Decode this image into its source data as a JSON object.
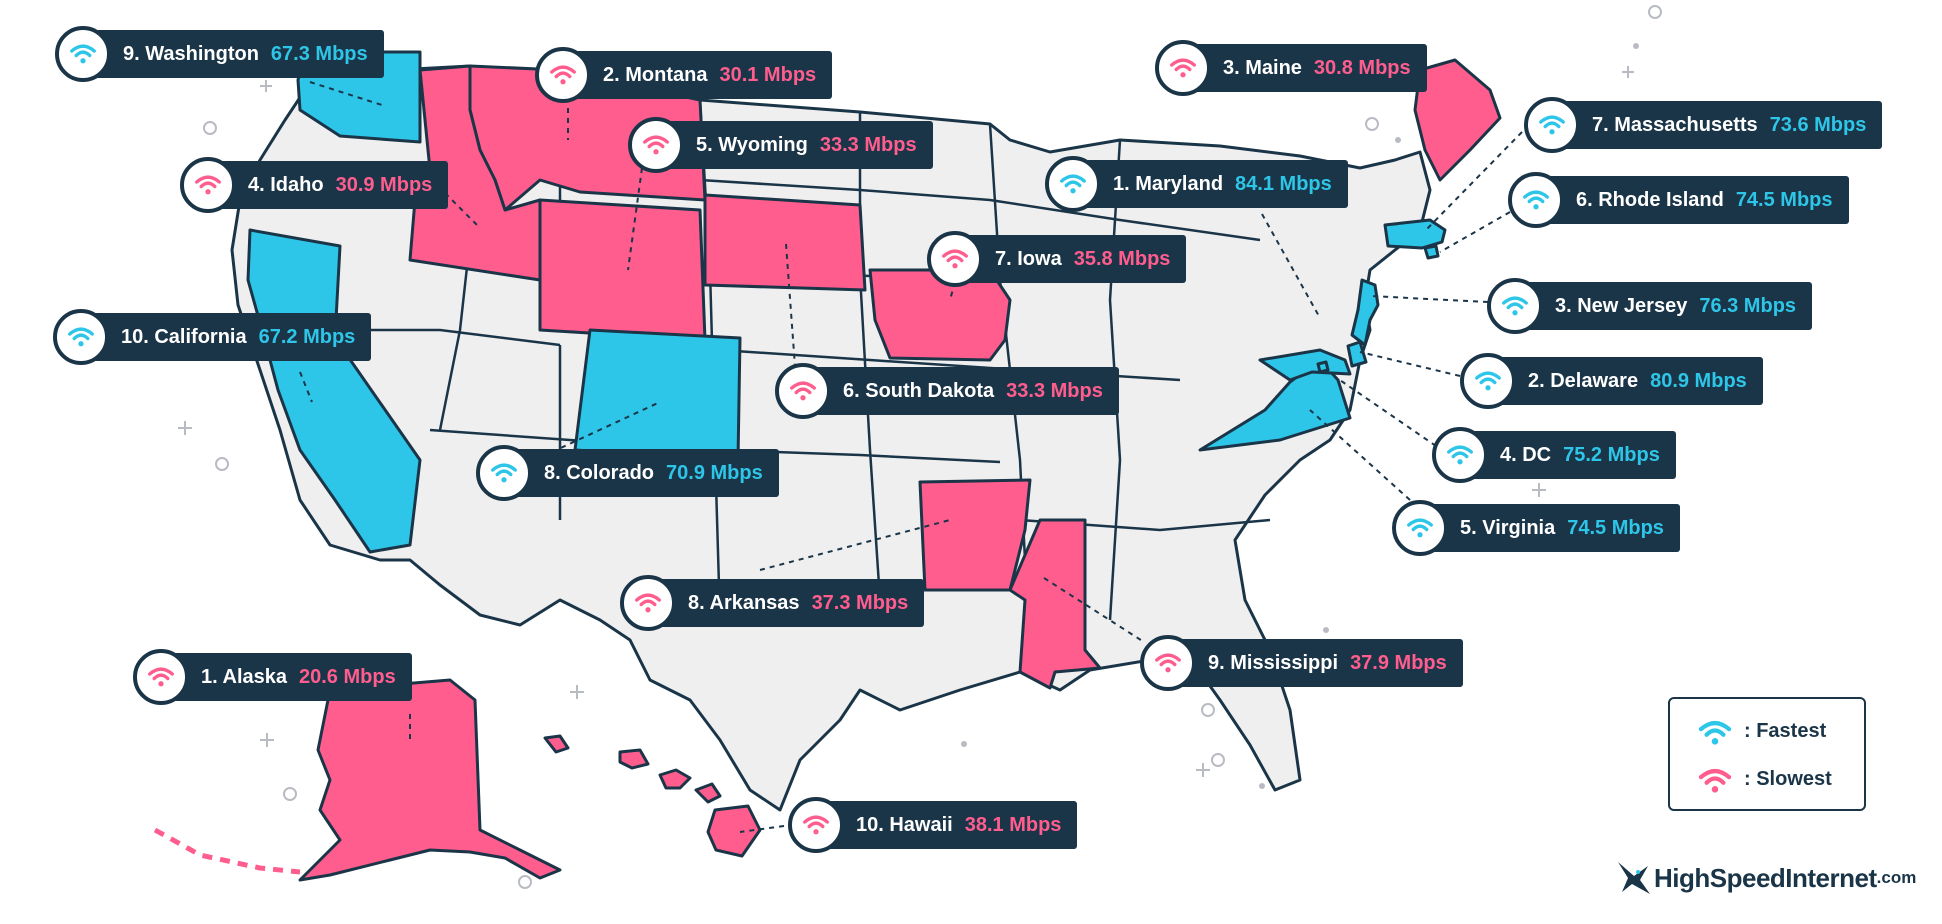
{
  "colors": {
    "fast": "#2ec6e8",
    "slow": "#ff5d8e",
    "land": "#efeff0",
    "border": "#1b3548",
    "label_bg": "#1b3548"
  },
  "fastest": [
    {
      "rank_name": "1. Maryland",
      "speed": "84.1 Mbps"
    },
    {
      "rank_name": "2. Delaware",
      "speed": "80.9 Mbps"
    },
    {
      "rank_name": "3. New Jersey",
      "speed": "76.3 Mbps"
    },
    {
      "rank_name": "4. DC",
      "speed": "75.2 Mbps"
    },
    {
      "rank_name": "5. Virginia",
      "speed": "74.5 Mbps"
    },
    {
      "rank_name": "6. Rhode Island",
      "speed": "74.5 Mbps"
    },
    {
      "rank_name": "7. Massachusetts",
      "speed": "73.6 Mbps"
    },
    {
      "rank_name": "8. Colorado",
      "speed": "70.9 Mbps"
    },
    {
      "rank_name": "9. Washington",
      "speed": "67.3 Mbps"
    },
    {
      "rank_name": "10. California",
      "speed": "67.2 Mbps"
    }
  ],
  "slowest": [
    {
      "rank_name": "1. Alaska",
      "speed": "20.6 Mbps"
    },
    {
      "rank_name": "2. Montana",
      "speed": "30.1 Mbps"
    },
    {
      "rank_name": "3. Maine",
      "speed": "30.8 Mbps"
    },
    {
      "rank_name": "4. Idaho",
      "speed": "30.9 Mbps"
    },
    {
      "rank_name": "5. Wyoming",
      "speed": "33.3 Mbps"
    },
    {
      "rank_name": "6. South Dakota",
      "speed": "33.3 Mbps"
    },
    {
      "rank_name": "7. Iowa",
      "speed": "35.8 Mbps"
    },
    {
      "rank_name": "8. Arkansas",
      "speed": "37.3 Mbps"
    },
    {
      "rank_name": "9. Mississippi",
      "speed": "37.9 Mbps"
    },
    {
      "rank_name": "10. Hawaii",
      "speed": "38.1 Mbps"
    }
  ],
  "legend": {
    "fastest_label": ":  Fastest",
    "slowest_label": ":  Slowest",
    "icon": "wifi-icon"
  },
  "logo": {
    "text": "HighSpeedInternet",
    "suffix": ".com",
    "icon": "hummingbird-icon"
  }
}
